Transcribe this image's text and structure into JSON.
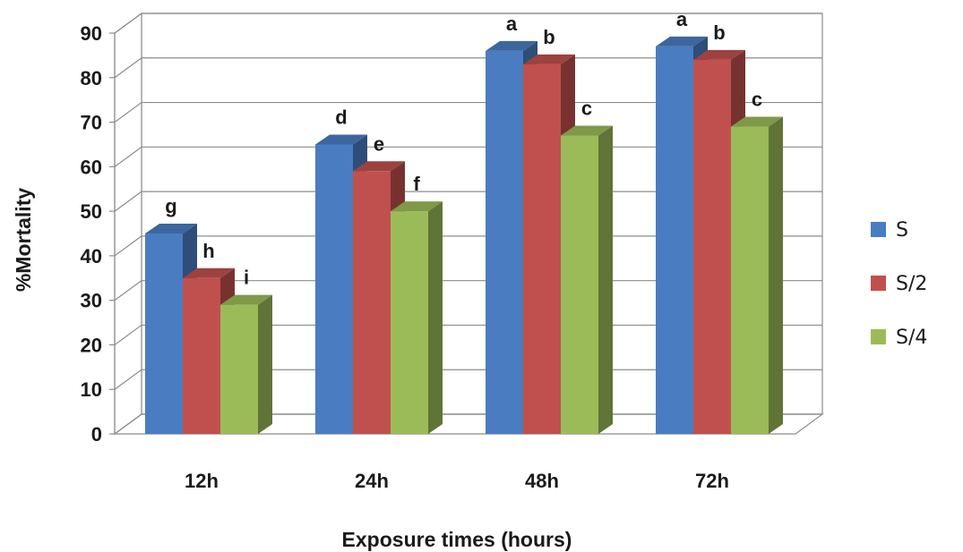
{
  "chart_data": {
    "type": "bar",
    "title": "",
    "xlabel": "Exposure times (hours)",
    "ylabel": "%Mortality",
    "ylim": [
      0,
      90
    ],
    "yticks": [
      0,
      10,
      20,
      30,
      40,
      50,
      60,
      70,
      80,
      90
    ],
    "categories": [
      "12h",
      "24h",
      "48h",
      "72h"
    ],
    "series": [
      {
        "name": "S",
        "color": "#4a7cc2",
        "values": [
          45,
          65,
          86,
          87
        ],
        "labels": [
          "g",
          "d",
          "a",
          "a"
        ]
      },
      {
        "name": "S/2",
        "color": "#c0504d",
        "values": [
          35,
          59,
          83,
          84
        ],
        "labels": [
          "h",
          "e",
          "b",
          "b"
        ]
      },
      {
        "name": "S/4",
        "color": "#9bbb59",
        "values": [
          29,
          50,
          67,
          69
        ],
        "labels": [
          "i",
          "f",
          "c",
          "c"
        ]
      }
    ],
    "grid": true,
    "legend_position": "right"
  }
}
